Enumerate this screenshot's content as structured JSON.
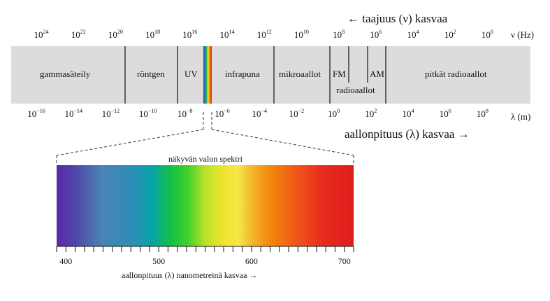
{
  "frequency_arrow_label": "← taajuus (ν) kasvaa",
  "frequency_unit": "ν (Hz)",
  "wavelength_arrow_label": "aallonpituus (λ) kasvaa →",
  "wavelength_unit": "λ (m)",
  "frequency_ticks": [
    {
      "base": "10",
      "exp": "24"
    },
    {
      "base": "10",
      "exp": "22"
    },
    {
      "base": "10",
      "exp": "20"
    },
    {
      "base": "10",
      "exp": "18"
    },
    {
      "base": "10",
      "exp": "16"
    },
    {
      "base": "10",
      "exp": "14"
    },
    {
      "base": "10",
      "exp": "12"
    },
    {
      "base": "10",
      "exp": "10"
    },
    {
      "base": "10",
      "exp": "8"
    },
    {
      "base": "10",
      "exp": "6"
    },
    {
      "base": "10",
      "exp": "4"
    },
    {
      "base": "10",
      "exp": "2"
    },
    {
      "base": "10",
      "exp": "0"
    }
  ],
  "wavelength_ticks": [
    {
      "base": "10",
      "exp": "−16"
    },
    {
      "base": "10",
      "exp": "−14"
    },
    {
      "base": "10",
      "exp": "−12"
    },
    {
      "base": "10",
      "exp": "−10"
    },
    {
      "base": "10",
      "exp": "−8"
    },
    {
      "base": "10",
      "exp": "−6"
    },
    {
      "base": "10",
      "exp": "−4"
    },
    {
      "base": "10",
      "exp": "−2"
    },
    {
      "base": "10",
      "exp": "0"
    },
    {
      "base": "10",
      "exp": "2"
    },
    {
      "base": "10",
      "exp": "4"
    },
    {
      "base": "10",
      "exp": "6"
    },
    {
      "base": "10",
      "exp": "8"
    }
  ],
  "regions": {
    "gamma": "gammasäteily",
    "xray": "röntgen",
    "uv": "UV",
    "infrared": "infrapuna",
    "microwave": "mikroaallot",
    "fm": "FM",
    "radio": "radioaallot",
    "am": "AM",
    "longwave": "pitkät radioaallot"
  },
  "visible_title": "näkyvän valon spektri",
  "nm_ticks": [
    "400",
    "500",
    "600",
    "700"
  ],
  "nm_axis_label": "aallonpituus (λ) nanometreinä kasvaa →",
  "colors": {
    "band": "#dcdcdc",
    "violet": "#5a2aa0",
    "blue": "#4a7cb0",
    "cyan": "#0aa4a8",
    "green": "#1ec832",
    "yellow": "#f0e424",
    "orange": "#f08a10",
    "red": "#e41e1e"
  }
}
